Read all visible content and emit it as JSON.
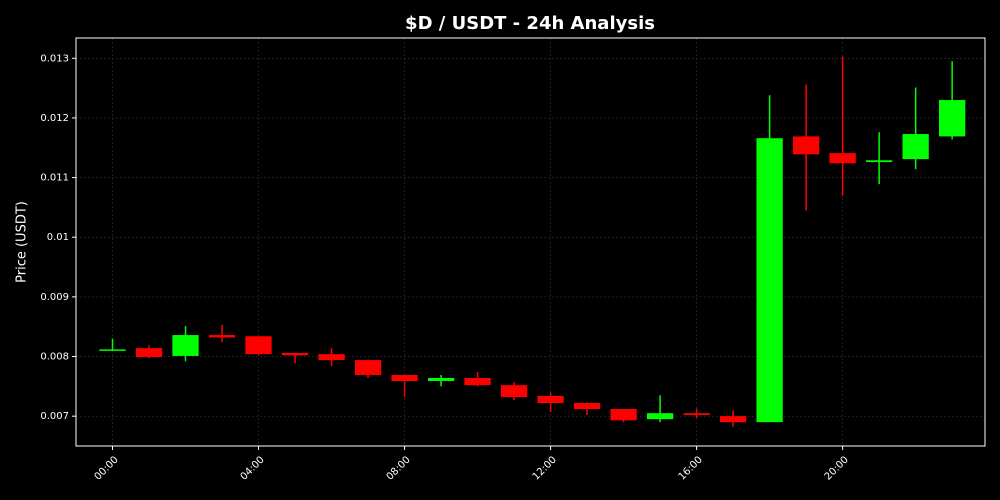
{
  "chart_data": {
    "type": "candlestick",
    "title": "$D / USDT - 24h Analysis",
    "y_label": "Price (USDT)",
    "x": [
      0,
      1,
      2,
      3,
      4,
      5,
      6,
      7,
      8,
      9,
      10,
      11,
      12,
      13,
      14,
      15,
      16,
      17,
      18,
      19,
      20,
      21,
      22,
      23
    ],
    "open": [
      0.00811,
      0.00814,
      0.00801,
      0.00836,
      0.00834,
      0.00806,
      0.00804,
      0.00794,
      0.00769,
      0.00759,
      0.00764,
      0.00752,
      0.00734,
      0.00722,
      0.00712,
      0.00695,
      0.00705,
      0.007,
      0.0069,
      0.01169,
      0.01141,
      0.01126,
      0.01131,
      0.01169
    ],
    "high": [
      0.0083,
      0.00819,
      0.00851,
      0.00853,
      0.00835,
      0.00806,
      0.00814,
      0.00795,
      0.00769,
      0.00769,
      0.00774,
      0.00757,
      0.0074,
      0.00723,
      0.00712,
      0.00735,
      0.00713,
      0.0071,
      0.01238,
      0.01256,
      0.01303,
      0.01176,
      0.01251,
      0.01295
    ],
    "low": [
      0.0081,
      0.00797,
      0.00792,
      0.00824,
      0.00802,
      0.00789,
      0.00784,
      0.00764,
      0.00732,
      0.0075,
      0.0075,
      0.00727,
      0.00707,
      0.00702,
      0.0069,
      0.0069,
      0.00697,
      0.00682,
      0.0069,
      0.01045,
      0.0107,
      0.01089,
      0.01114,
      0.01164
    ],
    "close": [
      0.00812,
      0.00799,
      0.00836,
      0.00832,
      0.00804,
      0.00802,
      0.00794,
      0.00769,
      0.00759,
      0.00764,
      0.00752,
      0.00732,
      0.00722,
      0.00712,
      0.00693,
      0.00705,
      0.00702,
      0.0069,
      0.01166,
      0.01139,
      0.01124,
      0.01129,
      0.01173,
      0.0123
    ],
    "up_color": "#00ff00",
    "down_color": "#ff0000",
    "xlim": [
      -1,
      23.9
    ],
    "xticks": [
      {
        "value": 0,
        "label": "00:00"
      },
      {
        "value": 4,
        "label": "04:00"
      },
      {
        "value": 8,
        "label": "08:00"
      },
      {
        "value": 12,
        "label": "12:00"
      },
      {
        "value": 16,
        "label": "16:00"
      },
      {
        "value": 20,
        "label": "20:00"
      }
    ],
    "ylim": [
      0.0065,
      0.01334
    ],
    "yticks": [
      0.007,
      0.008,
      0.009,
      0.01,
      0.011,
      0.012,
      0.013
    ],
    "yticks_labels": null,
    "grid": true
  }
}
